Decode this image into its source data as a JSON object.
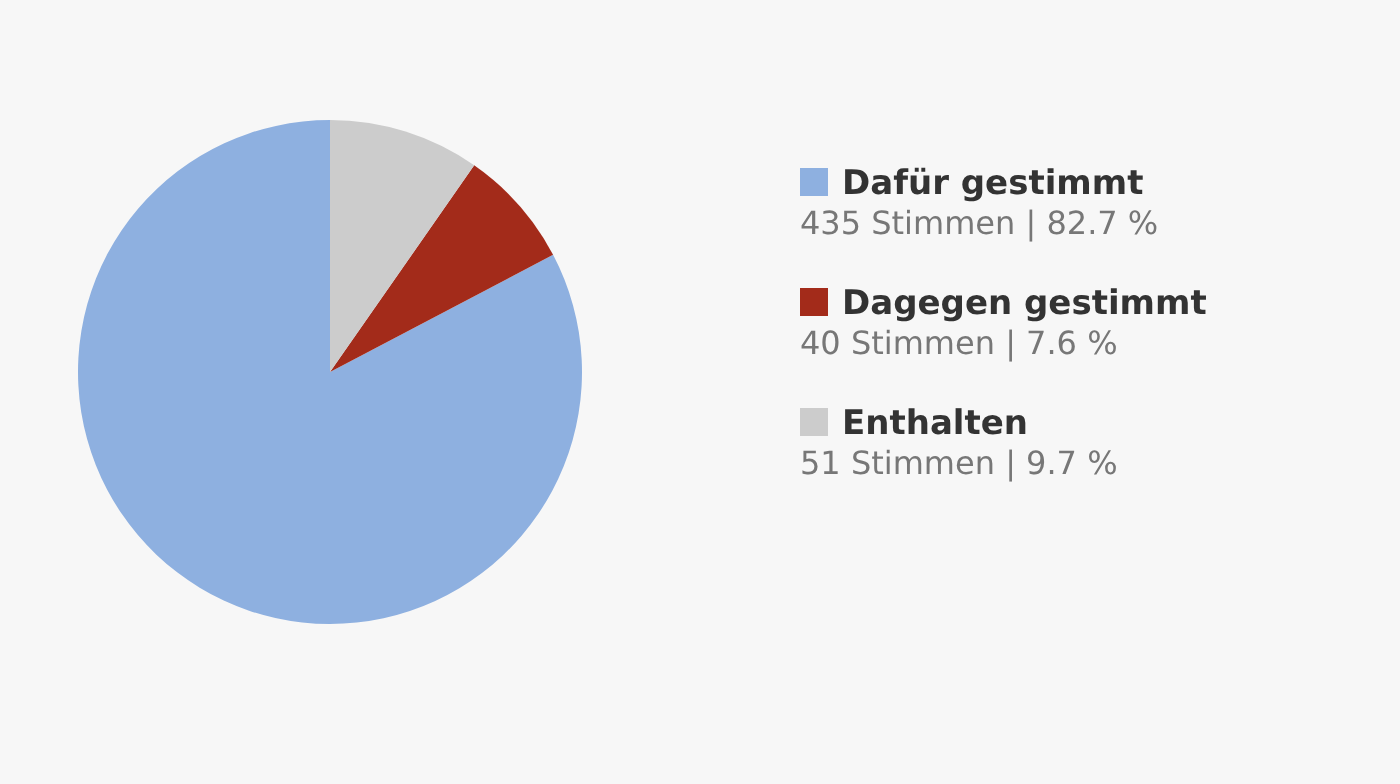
{
  "chart_data": {
    "type": "pie",
    "categories": [
      "Dafür gestimmt",
      "Dagegen gestimmt",
      "Enthalten"
    ],
    "values": [
      435,
      40,
      51
    ],
    "colors": [
      "#8eb0e0",
      "#a32b1a",
      "#cccccc"
    ],
    "value_labels": [
      "435 Stimmen | 82.7 %",
      "40 Stimmen | 7.6 %",
      "51 Stimmen | 9.7 %"
    ],
    "legend": "right"
  }
}
